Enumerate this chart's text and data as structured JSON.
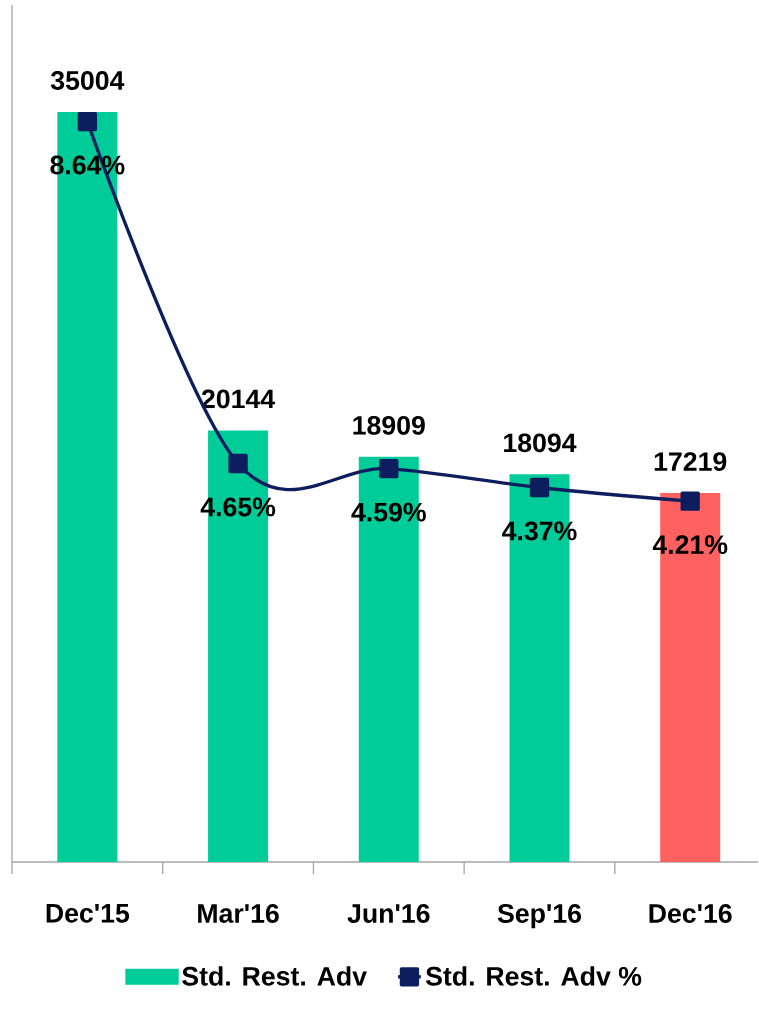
{
  "chart_data": {
    "type": "bar",
    "categories": [
      "Dec'15",
      "Mar'16",
      "Jun'16",
      "Sep'16",
      "Dec'16"
    ],
    "series": [
      {
        "name": "Std. Rest. Adv",
        "colors": [
          "#00cc99",
          "#00cc99",
          "#00cc99",
          "#00cc99",
          "#ff6161"
        ],
        "values": [
          35004,
          20144,
          18909,
          18094,
          17219
        ],
        "value_labels": [
          "35004",
          "20144",
          "18909",
          "18094",
          "17219"
        ]
      },
      {
        "name": "Std. Rest. Adv %",
        "type": "line",
        "axis": "y2",
        "color": "#0d1e5e",
        "values": [
          8.64,
          4.65,
          4.59,
          4.37,
          4.21
        ],
        "value_labels": [
          "8.64%",
          "4.65%",
          "4.59%",
          "4.37%",
          "4.21%"
        ]
      }
    ],
    "ylim": [
      0,
      40000
    ],
    "y2lim": [
      0,
      10
    ],
    "tick_labels": "x",
    "marker": "square",
    "legend": "bottom",
    "grid": false
  }
}
